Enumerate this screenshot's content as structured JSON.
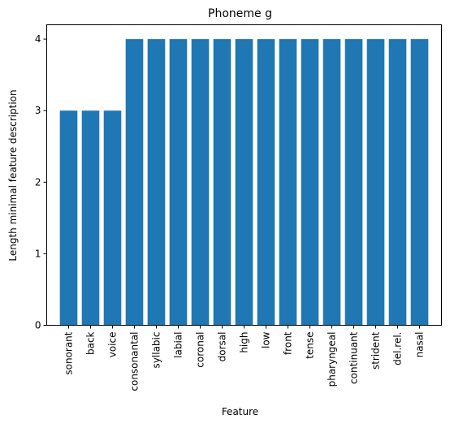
{
  "chart_data": {
    "type": "bar",
    "title": "Phoneme g",
    "xlabel": "Feature",
    "ylabel": "Length minimal feature description",
    "categories": [
      "sonorant",
      "back",
      "voice",
      "consonantal",
      "syllabic",
      "labial",
      "coronal",
      "dorsal",
      "high",
      "low",
      "front",
      "tense",
      "pharyngeal",
      "continuant",
      "strident",
      "del.rel.",
      "nasal"
    ],
    "values": [
      3,
      3,
      3,
      4,
      4,
      4,
      4,
      4,
      4,
      4,
      4,
      4,
      4,
      4,
      4,
      4,
      4
    ],
    "ylim": [
      0,
      4.2
    ],
    "yticks": [
      0,
      1,
      2,
      3,
      4
    ],
    "grid": false,
    "bar_color": "#1f77b4"
  }
}
